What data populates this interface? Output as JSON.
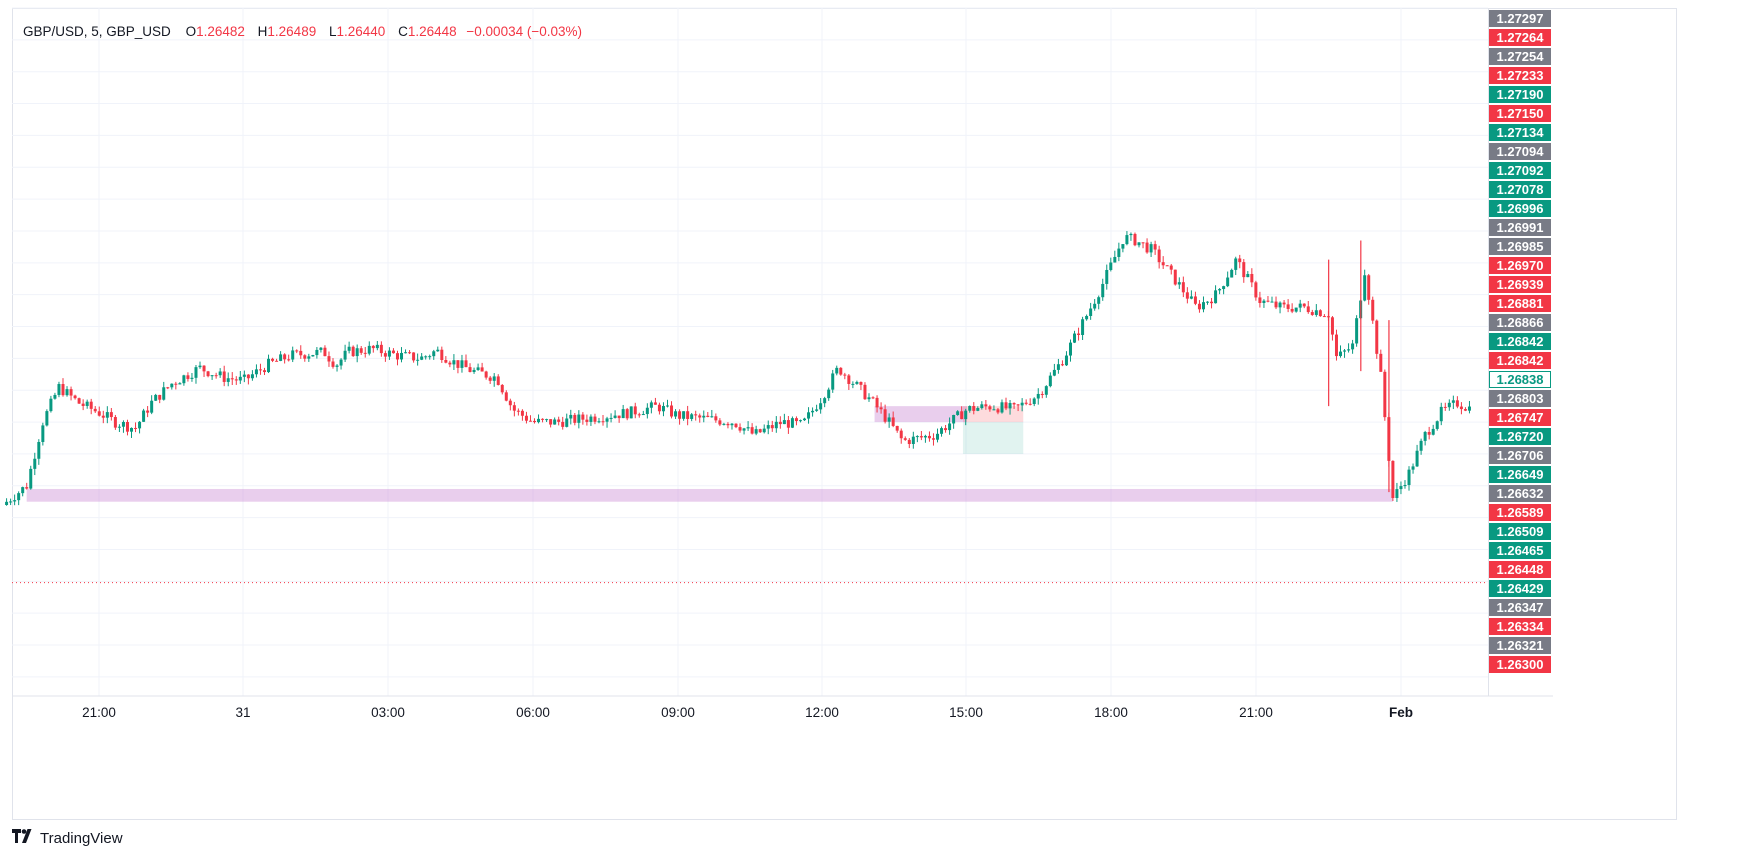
{
  "header": {
    "symbol": "GBP/USD, 5, GBP_USD",
    "open_label": "O",
    "open": "1.26482",
    "high_label": "H",
    "high": "1.26489",
    "low_label": "L",
    "low": "1.26440",
    "close_label": "C",
    "close": "1.26448",
    "change": "−0.00034 (−0.03%)"
  },
  "brand": {
    "name": "TradingView"
  },
  "colors": {
    "up": "#089981",
    "down": "#f23645",
    "grid": "#f0f3fa",
    "zone": "#e1bee7",
    "gray_tag": "#787b86"
  },
  "chart_data": {
    "type": "candlestick",
    "symbol": "GBP/USD",
    "interval": "5",
    "ylim": [
      1.2627,
      1.2735
    ],
    "x_ticks": [
      "21:00",
      "31",
      "03:00",
      "06:00",
      "09:00",
      "12:00",
      "15:00",
      "18:00",
      "21:00",
      "Feb"
    ],
    "price_labels": [
      {
        "value": "1.27297",
        "type": "gray"
      },
      {
        "value": "1.27264",
        "type": "red"
      },
      {
        "value": "1.27254",
        "type": "gray"
      },
      {
        "value": "1.27233",
        "type": "red"
      },
      {
        "value": "1.27190",
        "type": "green"
      },
      {
        "value": "1.27150",
        "type": "red"
      },
      {
        "value": "1.27134",
        "type": "green"
      },
      {
        "value": "1.27094",
        "type": "gray"
      },
      {
        "value": "1.27092",
        "type": "green"
      },
      {
        "value": "1.27078",
        "type": "green"
      },
      {
        "value": "1.26996",
        "type": "green"
      },
      {
        "value": "1.26991",
        "type": "gray"
      },
      {
        "value": "1.26985",
        "type": "gray"
      },
      {
        "value": "1.26970",
        "type": "red"
      },
      {
        "value": "1.26939",
        "type": "red"
      },
      {
        "value": "1.26881",
        "type": "red"
      },
      {
        "value": "1.26866",
        "type": "gray"
      },
      {
        "value": "1.26842",
        "type": "green"
      },
      {
        "value": "1.26842",
        "type": "red"
      },
      {
        "value": "1.26838",
        "type": "outline"
      },
      {
        "value": "1.26803",
        "type": "gray"
      },
      {
        "value": "1.26747",
        "type": "red"
      },
      {
        "value": "1.26720",
        "type": "green"
      },
      {
        "value": "1.26706",
        "type": "gray"
      },
      {
        "value": "1.26649",
        "type": "green"
      },
      {
        "value": "1.26632",
        "type": "gray"
      },
      {
        "value": "1.26589",
        "type": "red"
      },
      {
        "value": "1.26509",
        "type": "green"
      },
      {
        "value": "1.26465",
        "type": "green"
      },
      {
        "value": "1.26448",
        "type": "red"
      },
      {
        "value": "1.26429",
        "type": "green"
      },
      {
        "value": "1.26347",
        "type": "gray"
      },
      {
        "value": "1.26334",
        "type": "red"
      },
      {
        "value": "1.26321",
        "type": "gray"
      },
      {
        "value": "1.26300",
        "type": "red"
      }
    ],
    "current_price": 1.26448,
    "zones": [
      {
        "type": "pink",
        "from": "19:30",
        "to": "23:50",
        "low": 1.26575,
        "high": 1.26595
      },
      {
        "type": "pink",
        "from": "13:05",
        "to": "15:00",
        "low": 1.267,
        "high": 1.26725
      },
      {
        "type": "green",
        "from": "14:55",
        "to": "16:10",
        "low": 1.2665,
        "high": 1.267
      },
      {
        "type": "red",
        "from": "14:55",
        "to": "16:10",
        "low": 1.267,
        "high": 1.26725
      }
    ],
    "path": [
      [
        "19:05",
        1.26575
      ],
      [
        "19:30",
        1.266
      ],
      [
        "19:50",
        1.267
      ],
      [
        "20:10",
        1.26755
      ],
      [
        "20:35",
        1.2673
      ],
      [
        "21:00",
        1.26715
      ],
      [
        "21:20",
        1.267
      ],
      [
        "21:45",
        1.2669
      ],
      [
        "22:05",
        1.2673
      ],
      [
        "22:30",
        1.2676
      ],
      [
        "23:05",
        1.26785
      ],
      [
        "23:35",
        1.2677
      ],
      [
        "00:00",
        1.26765
      ],
      [
        "00:30",
        1.2679
      ],
      [
        "01:00",
        1.26805
      ],
      [
        "01:40",
        1.2681
      ],
      [
        "01:55",
        1.2679
      ],
      [
        "02:10",
        1.2681
      ],
      [
        "02:40",
        1.26815
      ],
      [
        "03:10",
        1.26805
      ],
      [
        "03:40",
        1.268
      ],
      [
        "04:00",
        1.26812
      ],
      [
        "04:20",
        1.26795
      ],
      [
        "04:45",
        1.2678
      ],
      [
        "05:15",
        1.2677
      ],
      [
        "05:35",
        1.2672
      ],
      [
        "06:00",
        1.267
      ],
      [
        "06:30",
        1.267
      ],
      [
        "07:00",
        1.26705
      ],
      [
        "07:30",
        1.2671
      ],
      [
        "08:00",
        1.26715
      ],
      [
        "08:35",
        1.26725
      ],
      [
        "09:00",
        1.2671
      ],
      [
        "09:35",
        1.26705
      ],
      [
        "10:10",
        1.267
      ],
      [
        "10:35",
        1.2668
      ],
      [
        "11:10",
        1.267
      ],
      [
        "11:35",
        1.26695
      ],
      [
        "12:00",
        1.2674
      ],
      [
        "12:20",
        1.26785
      ],
      [
        "12:40",
        1.2676
      ],
      [
        "13:00",
        1.26735
      ],
      [
        "13:20",
        1.26705
      ],
      [
        "13:40",
        1.2667
      ],
      [
        "14:20",
        1.2668
      ],
      [
        "14:40",
        1.267
      ],
      [
        "15:00",
        1.2672
      ],
      [
        "15:30",
        1.26725
      ],
      [
        "16:00",
        1.2672
      ],
      [
        "16:30",
        1.26745
      ],
      [
        "17:00",
        1.268
      ],
      [
        "17:30",
        1.2687
      ],
      [
        "17:50",
        1.2692
      ],
      [
        "18:15",
        1.2699
      ],
      [
        "18:30",
        1.26985
      ],
      [
        "18:50",
        1.2697
      ],
      [
        "19:15",
        1.2693
      ],
      [
        "19:45",
        1.2688
      ],
      [
        "20:10",
        1.269
      ],
      [
        "20:35",
        1.26955
      ],
      [
        "21:05",
        1.2689
      ],
      [
        "21:30",
        1.2688
      ],
      [
        "22:00",
        1.2688
      ],
      [
        "22:30",
        1.2687
      ],
      [
        "22:40",
        1.268
      ],
      [
        "23:00",
        1.2682
      ],
      [
        "23:15",
        1.2694
      ],
      [
        "23:35",
        1.2677
      ],
      [
        "23:50",
        1.2658
      ],
      [
        "00:10",
        1.2662
      ],
      [
        "00:30",
        1.2668
      ],
      [
        "00:50",
        1.26715
      ],
      [
        "01:10",
        1.2673
      ],
      [
        "01:30",
        1.2672
      ]
    ],
    "spikes": [
      {
        "time": "22:30",
        "low": 1.26725,
        "high": 1.26955
      },
      {
        "time": "23:10",
        "low": 1.2678,
        "high": 1.26985
      },
      {
        "time": "23:45",
        "low": 1.2659,
        "high": 1.2686
      }
    ],
    "grid": true
  }
}
